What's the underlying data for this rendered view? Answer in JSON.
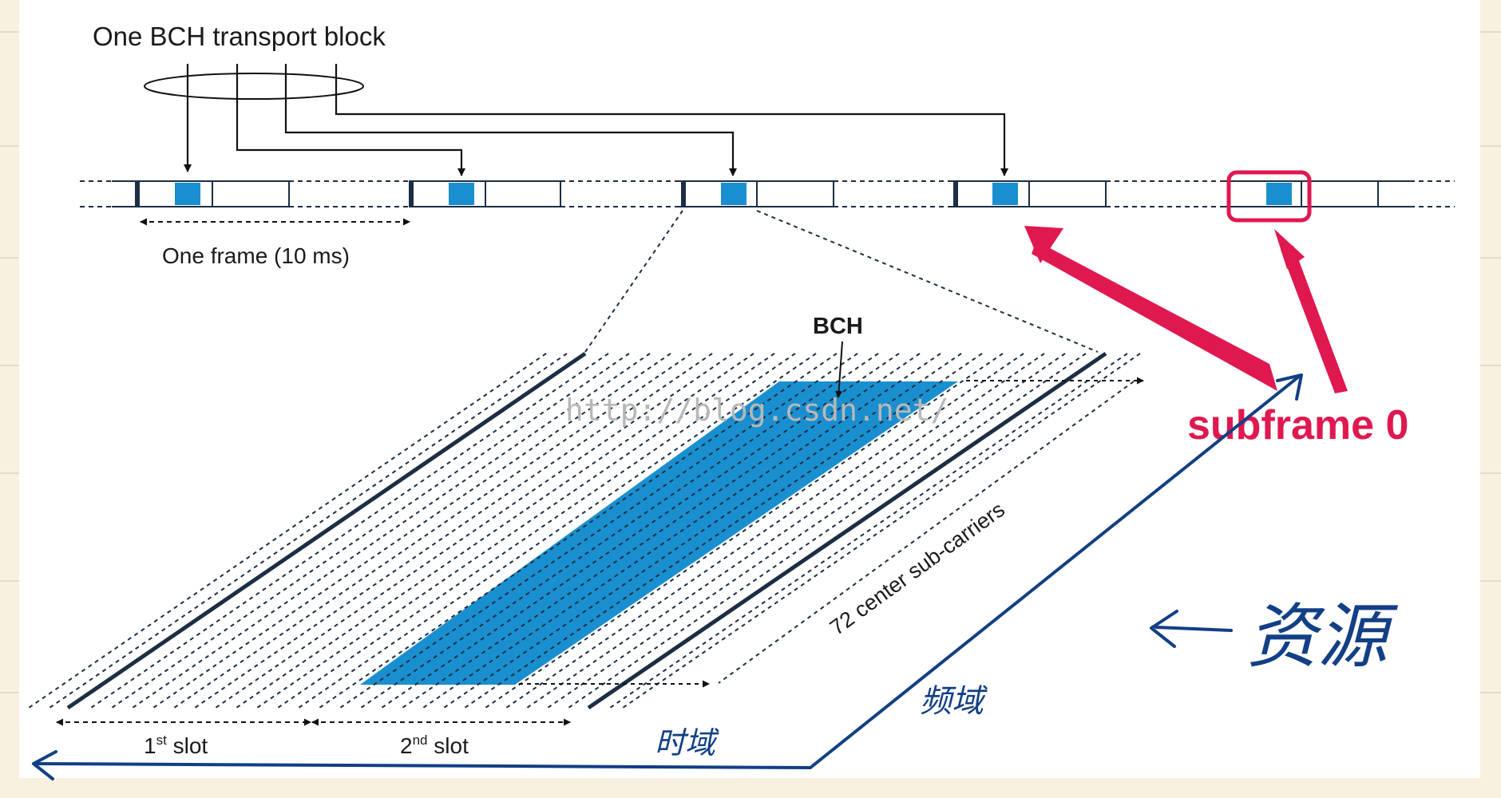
{
  "labels": {
    "bch_block": "One BCH transport block",
    "frame": "One frame (10 ms)",
    "bch": "BCH",
    "subcarriers": "72 center sub-carriers",
    "slot1_num": "1",
    "slot1_sup": "st",
    "slot1_word": " slot",
    "slot2_num": "2",
    "slot2_sup": "nd",
    "slot2_word": " slot",
    "subframe0": "subframe 0",
    "watermark": "http://blog.csdn.net/",
    "hw_resource": "资源",
    "hw_freq": "频域",
    "hw_time": "时域"
  },
  "colors": {
    "bch_blue": "#1a8fcf",
    "frame_line": "#1c2e44",
    "annotation_red": "#e01850",
    "hand_blue": "#123f86",
    "page_bg": "#f8f1df"
  }
}
